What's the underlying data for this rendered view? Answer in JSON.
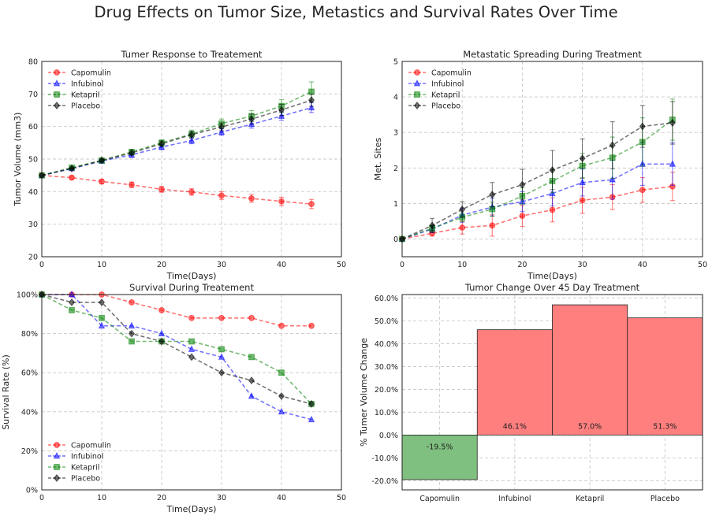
{
  "suptitle": "Drug Effects on Tumor Size, Metastics and Survival Rates Over Time",
  "colors": {
    "Capomulin": "#ff0000",
    "Infubinol": "#0000ff",
    "Ketapril": "#008000",
    "Placebo": "#000000",
    "positive_bar": "#ff7f7f",
    "negative_bar": "#7fbf7f"
  },
  "chart_data": [
    {
      "type": "line",
      "title": "Tumer Response to Treatement",
      "xlabel": "Time(Days)",
      "ylabel": "Tumor Volume (mm3)",
      "xlim": [
        0,
        50
      ],
      "ylim": [
        20,
        80
      ],
      "xticks": [
        0,
        10,
        20,
        30,
        40,
        50
      ],
      "yticks": [
        20,
        30,
        40,
        50,
        60,
        70,
        80
      ],
      "grid": true,
      "legend": "top-left",
      "error_bars": true,
      "x": [
        0,
        5,
        10,
        15,
        20,
        25,
        30,
        35,
        40,
        45
      ],
      "series": [
        {
          "name": "Capomulin",
          "marker": "circle",
          "values": [
            45.0,
            44.3,
            43.1,
            42.1,
            40.7,
            39.9,
            38.8,
            37.9,
            37.0,
            36.2
          ],
          "errors": [
            0,
            0.45,
            0.7,
            0.85,
            0.9,
            1.0,
            1.2,
            1.2,
            1.3,
            1.4
          ]
        },
        {
          "name": "Infubinol",
          "marker": "triangle",
          "values": [
            45.0,
            47.1,
            49.4,
            51.3,
            53.7,
            55.7,
            58.3,
            60.7,
            63.2,
            65.8
          ],
          "errors": [
            0,
            0.3,
            0.5,
            0.8,
            0.8,
            1.0,
            1.0,
            1.2,
            1.3,
            1.5
          ]
        },
        {
          "name": "Ketapril",
          "marker": "square",
          "values": [
            45.0,
            47.4,
            49.6,
            52.2,
            55.0,
            57.7,
            60.9,
            63.2,
            66.3,
            70.7
          ],
          "errors": [
            0,
            0.3,
            0.6,
            0.8,
            0.9,
            1.2,
            1.4,
            1.7,
            2.0,
            3.0
          ]
        },
        {
          "name": "Placebo",
          "marker": "diamond",
          "values": [
            45.0,
            47.1,
            49.6,
            51.9,
            54.7,
            57.5,
            59.9,
            62.3,
            65.1,
            68.1
          ],
          "errors": [
            0,
            0.2,
            0.4,
            0.6,
            0.8,
            1.0,
            1.2,
            1.5,
            1.7,
            1.9
          ]
        }
      ]
    },
    {
      "type": "line",
      "title": "Metastatic Spreading During Treatment",
      "xlabel": "Time(Days)",
      "ylabel": "Met. Sites",
      "xlim": [
        0,
        50
      ],
      "ylim": [
        -0.5,
        5
      ],
      "xticks": [
        0,
        10,
        20,
        30,
        40,
        50
      ],
      "yticks": [
        0,
        1,
        2,
        3,
        4,
        5
      ],
      "grid": true,
      "legend": "top-left",
      "error_bars": true,
      "x": [
        0,
        5,
        10,
        15,
        20,
        25,
        30,
        35,
        40,
        45
      ],
      "series": [
        {
          "name": "Capomulin",
          "marker": "circle",
          "values": [
            0,
            0.16,
            0.32,
            0.38,
            0.65,
            0.82,
            1.09,
            1.18,
            1.38,
            1.48
          ],
          "errors": [
            0,
            0.08,
            0.18,
            0.3,
            0.3,
            0.34,
            0.37,
            0.35,
            0.35,
            0.4
          ]
        },
        {
          "name": "Infubinol",
          "marker": "triangle",
          "values": [
            0,
            0.28,
            0.67,
            0.9,
            1.05,
            1.28,
            1.59,
            1.67,
            2.11,
            2.11
          ],
          "errors": [
            0,
            0.1,
            0.2,
            0.25,
            0.28,
            0.35,
            0.38,
            0.55,
            0.6,
            0.6
          ]
        },
        {
          "name": "Ketapril",
          "marker": "square",
          "values": [
            0,
            0.3,
            0.61,
            0.84,
            1.21,
            1.63,
            2.06,
            2.29,
            2.73,
            3.36
          ],
          "errors": [
            0,
            0.09,
            0.12,
            0.2,
            0.23,
            0.33,
            0.35,
            0.58,
            0.68,
            0.58
          ]
        },
        {
          "name": "Placebo",
          "marker": "diamond",
          "values": [
            0,
            0.38,
            0.83,
            1.25,
            1.53,
            1.94,
            2.27,
            2.64,
            3.17,
            3.27
          ],
          "errors": [
            0,
            0.2,
            0.22,
            0.34,
            0.43,
            0.55,
            0.55,
            0.66,
            0.59,
            0.6
          ]
        }
      ]
    },
    {
      "type": "line",
      "title": "Survival During Treatement",
      "xlabel": "Time(Days)",
      "ylabel": "Survival Rate (%)",
      "xlim": [
        0,
        50
      ],
      "ylim": [
        0,
        100
      ],
      "xticks": [
        0,
        10,
        20,
        30,
        40,
        50
      ],
      "yticks": [
        0,
        20,
        40,
        60,
        80,
        100
      ],
      "ytick_suffix": "%",
      "grid": true,
      "legend": "bottom-left",
      "x": [
        0,
        5,
        10,
        15,
        20,
        25,
        30,
        35,
        40,
        45
      ],
      "series": [
        {
          "name": "Capomulin",
          "marker": "circle",
          "values": [
            100,
            100,
            100,
            96,
            92,
            88,
            88,
            88,
            84,
            84
          ]
        },
        {
          "name": "Infubinol",
          "marker": "triangle",
          "values": [
            100,
            100,
            84,
            84,
            80,
            72,
            68,
            48,
            40,
            36
          ]
        },
        {
          "name": "Ketapril",
          "marker": "square",
          "values": [
            100,
            92,
            88,
            76,
            76,
            76,
            72,
            68,
            60,
            44
          ]
        },
        {
          "name": "Placebo",
          "marker": "diamond",
          "values": [
            100,
            96,
            96,
            80,
            76,
            68,
            60,
            56,
            48,
            44
          ]
        }
      ]
    },
    {
      "type": "bar",
      "title": "Tumor Change Over 45 Day Treatment",
      "xlabel": "",
      "ylabel": "% Tumer Volume Change",
      "ylim": [
        -24,
        61.5
      ],
      "yticks": [
        -20,
        -10,
        0,
        10,
        20,
        30,
        40,
        50,
        60
      ],
      "ytick_suffix": ".0%",
      "grid": true,
      "categories": [
        "Capomulin",
        "Infubinol",
        "Ketapril",
        "Placebo"
      ],
      "values": [
        -19.5,
        46.1,
        57.0,
        51.3
      ],
      "labels": [
        "-19.5%",
        "46.1%",
        "57.0%",
        "51.3%"
      ]
    }
  ]
}
